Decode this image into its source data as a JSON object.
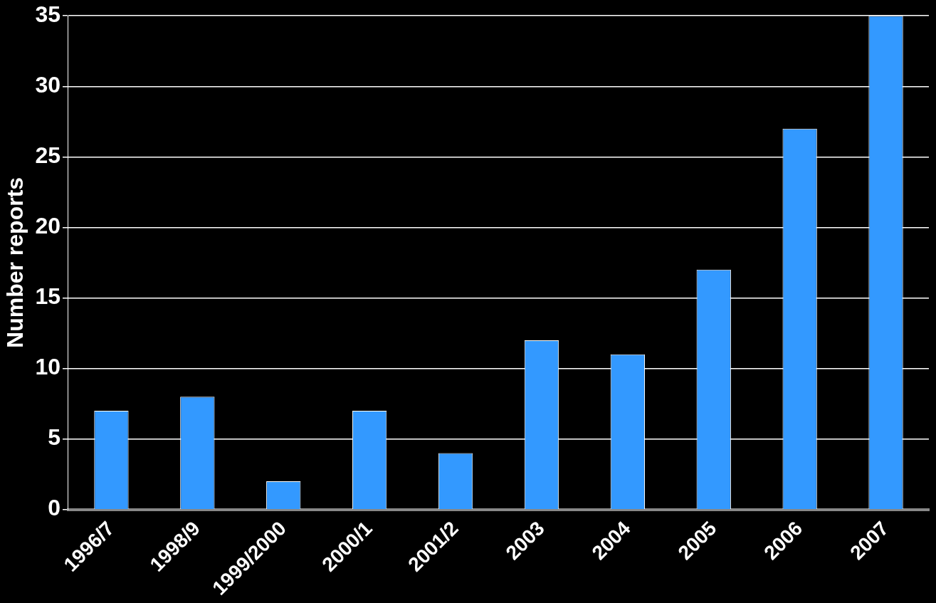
{
  "chart_data": {
    "type": "bar",
    "ylabel": "Number reports",
    "categories": [
      "1996/7",
      "1998/9",
      "1999/2000",
      "2000/1",
      "2001/2",
      "2003",
      "2004",
      "2005",
      "2006",
      "2007"
    ],
    "values": [
      7,
      8,
      2,
      7,
      4,
      12,
      11,
      17,
      27,
      35
    ],
    "color": "#3399ff",
    "ylim": [
      0,
      35
    ],
    "yticks": [
      0,
      5,
      10,
      15,
      20,
      25,
      30,
      35
    ],
    "grid": "y",
    "legend": false
  }
}
